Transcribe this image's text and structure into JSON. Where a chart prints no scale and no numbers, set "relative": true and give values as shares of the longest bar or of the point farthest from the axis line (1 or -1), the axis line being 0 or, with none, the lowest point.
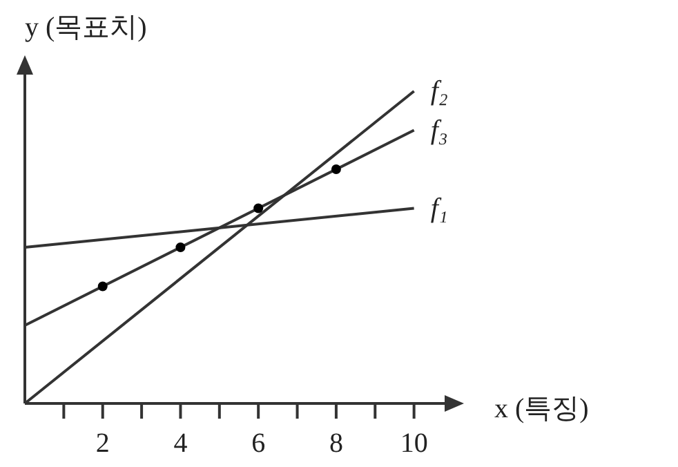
{
  "chart_data": {
    "type": "line",
    "relative": true,
    "xlabel": "x (특징)",
    "ylabel": "y (목표치)",
    "xlim": [
      0,
      11
    ],
    "xticks": [
      {
        "value": 1,
        "label": null
      },
      2,
      {
        "value": 3,
        "label": null
      },
      4,
      {
        "value": 5,
        "label": null
      },
      6,
      {
        "value": 7,
        "label": null
      },
      8,
      {
        "value": 9,
        "label": null
      },
      10
    ],
    "series": [
      {
        "name": "f₂",
        "color": "#333333",
        "x": [
          0,
          10
        ],
        "values": [
          0,
          1
        ]
      },
      {
        "name": "f₃",
        "color": "#333333",
        "x": [
          0,
          10
        ],
        "values": [
          0.25,
          0.875
        ]
      },
      {
        "name": "f₁",
        "color": "#333333",
        "x": [
          0,
          10
        ],
        "values": [
          0.5,
          0.625
        ]
      },
      {
        "type": "scatter",
        "marker": "circle",
        "color": "#000000",
        "x": [
          2,
          4,
          6,
          8
        ],
        "values": [
          0.375,
          0.5,
          0.625,
          0.75
        ]
      }
    ]
  }
}
